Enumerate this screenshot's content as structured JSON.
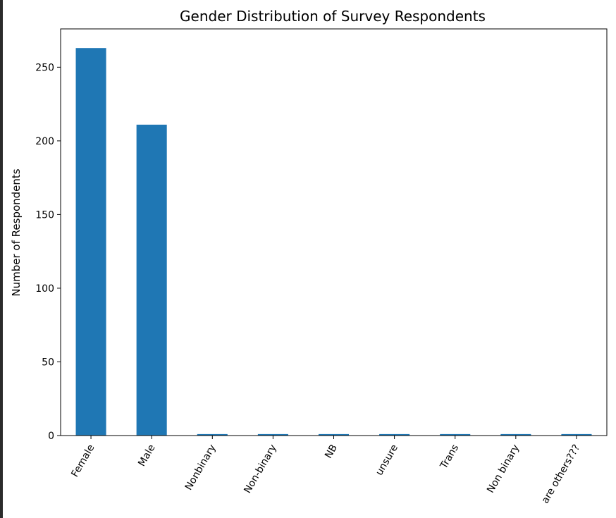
{
  "colors": {
    "bar": "#1f77b4",
    "background": "#ffffff",
    "frame": "#2b2b2b",
    "axis": "#000000"
  },
  "chart_data": {
    "type": "bar",
    "title": "Gender Distribution of Survey Respondents",
    "xlabel": "",
    "ylabel": "Number of Respondents",
    "categories": [
      "Female",
      "Male",
      "Nonbinary",
      "Non-binary",
      "NB",
      "unsure",
      "Trans",
      "Non binary",
      "are others???"
    ],
    "values": [
      263,
      211,
      1,
      1,
      1,
      1,
      1,
      1,
      1
    ],
    "ylim": [
      0,
      276
    ],
    "yticks": [
      0,
      50,
      100,
      150,
      200,
      250
    ],
    "grid": false,
    "legend": "none"
  }
}
